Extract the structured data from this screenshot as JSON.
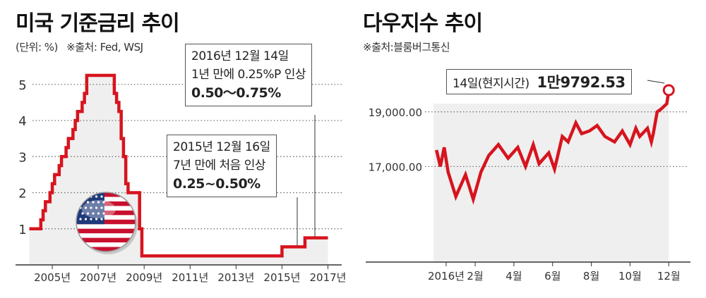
{
  "chart_data": [
    {
      "type": "line",
      "title": "미국 기준금리 추이",
      "subtitle_unit": "(단위: %)",
      "source": "※출처: Fed, WSJ",
      "step": true,
      "ylim": [
        0,
        5.25
      ],
      "yticks": [
        "1",
        "2",
        "3",
        "4",
        "5"
      ],
      "ytick_values": [
        1,
        2,
        3,
        4,
        5
      ],
      "xlim": [
        2003.4,
        2017.6
      ],
      "xticks": [
        "2005년",
        "2007년",
        "2009년",
        "2011년",
        "2013년",
        "2015년",
        "2017년"
      ],
      "xtick_values": [
        2005,
        2007,
        2009,
        2011,
        2013,
        2015,
        2017
      ],
      "grid": "horizontal dotted",
      "color": "#d7141e",
      "series": [
        {
          "x": [
            2004.0,
            2004.5,
            2004.6,
            2004.7,
            2004.9,
            2005.0,
            2005.1,
            2005.3,
            2005.4,
            2005.6,
            2005.7,
            2005.9,
            2006.0,
            2006.1,
            2006.3,
            2006.4,
            2006.5,
            2007.7,
            2007.8,
            2007.9,
            2008.0,
            2008.1,
            2008.2,
            2008.3,
            2008.8,
            2008.9,
            2015.0,
            2016.0,
            2017.0
          ],
          "y": [
            1.0,
            1.25,
            1.5,
            1.75,
            2.0,
            2.25,
            2.5,
            2.75,
            3.0,
            3.25,
            3.5,
            3.75,
            4.0,
            4.25,
            4.5,
            4.75,
            5.25,
            4.75,
            4.5,
            4.25,
            3.5,
            3.0,
            2.25,
            2.0,
            1.0,
            0.25,
            0.5,
            0.75,
            0.75
          ]
        }
      ],
      "annotations": [
        {
          "lines": [
            "2016년 12월 14일",
            "1년 만에 0.25%P 인상"
          ],
          "bold": "0.50～0.75%"
        },
        {
          "lines": [
            "2015년 12월 16일",
            "7년 만에 처음 인상"
          ],
          "bold": "0.25~0.50%"
        }
      ]
    },
    {
      "type": "line",
      "title": "다우지수 추이",
      "source": "※출처:블룸버그통신",
      "ylim": [
        13500,
        20000
      ],
      "yticks": [
        "17,000.00",
        "19,000.00"
      ],
      "ytick_values": [
        17000,
        19000
      ],
      "xlim": [
        -0.3,
        12.1
      ],
      "xticks": [
        "2016년",
        "2월",
        "4월",
        "6월",
        "8월",
        "10월",
        "12월"
      ],
      "xtick_values": [
        0.5,
        2,
        4,
        6,
        8,
        10,
        12
      ],
      "grid": "horizontal dotted",
      "color": "#d7141e",
      "series": [
        {
          "x": [
            0.0,
            0.2,
            0.4,
            0.6,
            1.0,
            1.5,
            1.9,
            2.3,
            2.7,
            3.2,
            3.7,
            4.2,
            4.6,
            5.0,
            5.3,
            5.8,
            6.1,
            6.5,
            6.8,
            7.2,
            7.5,
            7.9,
            8.3,
            8.7,
            9.2,
            9.6,
            10.0,
            10.3,
            10.5,
            10.9,
            11.1,
            11.2,
            11.4,
            11.6,
            11.9,
            12.0
          ],
          "y": [
            17600,
            17000,
            17700,
            16800,
            15900,
            16700,
            15800,
            16800,
            17400,
            17800,
            17300,
            17700,
            17000,
            17800,
            17100,
            17500,
            16900,
            18100,
            17900,
            18600,
            18200,
            18300,
            18500,
            18100,
            17900,
            18300,
            17800,
            18400,
            18100,
            18400,
            17900,
            18200,
            19000,
            19100,
            19300,
            19792.53
          ]
        }
      ],
      "annotation": {
        "label": "14일(현지시간)",
        "value": "1만9792.53"
      }
    }
  ]
}
